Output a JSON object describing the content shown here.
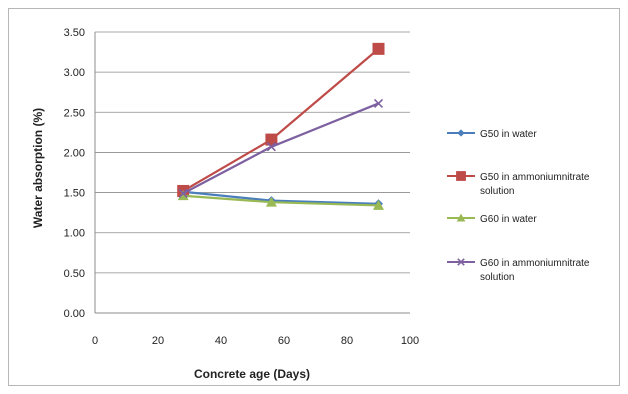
{
  "chart_data": {
    "type": "line",
    "title": "",
    "xlabel": "Concrete age (Days)",
    "ylabel": "Water absorption (%)",
    "xlim": [
      0,
      100
    ],
    "ylim": [
      0,
      3.5
    ],
    "xticks": [
      0,
      20,
      40,
      60,
      80,
      100
    ],
    "xtick_labels": [
      "0",
      "20",
      "40",
      "60",
      "80",
      "100"
    ],
    "yticks": [
      0,
      0.5,
      1,
      1.5,
      2,
      2.5,
      3,
      3.5
    ],
    "ytick_labels": [
      "0.00",
      "0.50",
      "1.00",
      "1.50",
      "2.00",
      "2.50",
      "3.00",
      "3.50"
    ],
    "grid": "horizontal",
    "legend_position": "right",
    "series": [
      {
        "name": "G50 in water",
        "x": [
          28,
          56,
          90
        ],
        "y": [
          1.51,
          1.4,
          1.36
        ],
        "color": "#4a7ebb",
        "marker": "diamond"
      },
      {
        "name": "G50 in ammoniumnitrate solution",
        "legend_lines": [
          "G50 in ammoniumnitrate",
          "solution"
        ],
        "x": [
          28,
          56,
          90
        ],
        "y": [
          1.52,
          2.16,
          3.29
        ],
        "color": "#be4b48",
        "marker": "square"
      },
      {
        "name": "G60 in water",
        "x": [
          28,
          56,
          90
        ],
        "y": [
          1.46,
          1.38,
          1.34
        ],
        "color": "#98b954",
        "marker": "triangle"
      },
      {
        "name": "G60 in ammoniumnitrate solution",
        "legend_lines": [
          "G60 in ammoniumnitrate",
          "solution"
        ],
        "x": [
          28,
          56,
          90
        ],
        "y": [
          1.49,
          2.07,
          2.61
        ],
        "color": "#7d60a0",
        "marker": "x"
      }
    ]
  }
}
